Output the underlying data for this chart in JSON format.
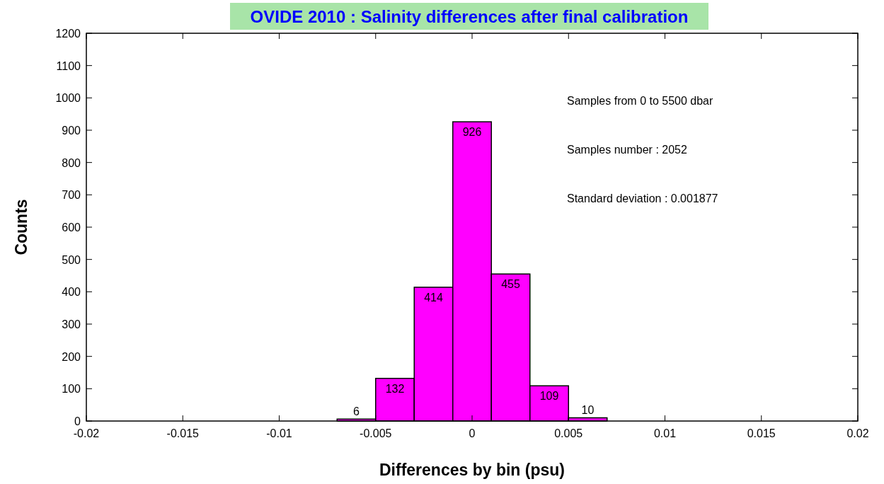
{
  "chart_data": {
    "type": "histogram",
    "title": "OVIDE 2010 : Salinity differences after final calibration",
    "xlabel": "Differences by bin (psu)",
    "ylabel": "Counts",
    "bins": [
      -0.007,
      -0.005,
      -0.003,
      -0.001,
      0.001,
      0.003,
      0.005,
      0.007
    ],
    "values": [
      6,
      132,
      414,
      926,
      455,
      109,
      10
    ],
    "color": "#ff00ff",
    "data_labels": true,
    "xlim": [
      -0.02,
      0.02
    ],
    "xticks": [
      -0.02,
      -0.015,
      -0.01,
      -0.005,
      0,
      0.005,
      0.01,
      0.015,
      0.02
    ],
    "ylim": [
      0,
      1200
    ],
    "yticks": [
      0,
      100,
      200,
      300,
      400,
      500,
      600,
      700,
      800,
      900,
      1000,
      1100,
      1200
    ],
    "grid": false,
    "annotations": [
      "Samples from 0 to 5500 dbar",
      "Samples number : 2052",
      "Standard deviation : 0.001877"
    ]
  }
}
